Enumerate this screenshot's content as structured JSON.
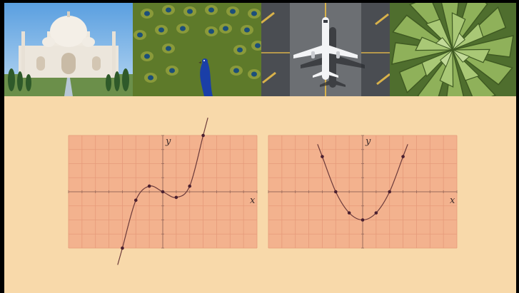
{
  "photos": [
    {
      "subject": "taj-mahal"
    },
    {
      "subject": "peacock"
    },
    {
      "subject": "airplane-on-runway"
    },
    {
      "subject": "spiral-aloe"
    }
  ],
  "colors": {
    "background": "#f8d9aa",
    "graph_fill": "#f3b28e",
    "grid": "#e69a7a",
    "curve": "#6b3a3a",
    "point": "#4a2030"
  },
  "chart_data": [
    {
      "type": "line",
      "xlabel": "x",
      "ylabel": "y",
      "xlim": [
        -7,
        7
      ],
      "ylim": [
        -4,
        4
      ],
      "grid": true,
      "x": [
        -3,
        -2,
        -1,
        0,
        1,
        2,
        3
      ],
      "y": [
        -4,
        -0.6,
        0.4,
        0,
        -0.4,
        0.4,
        4
      ]
    },
    {
      "type": "line",
      "xlabel": "x",
      "ylabel": "y",
      "xlim": [
        -7,
        7
      ],
      "ylim": [
        -4,
        4
      ],
      "grid": true,
      "x": [
        -3,
        -2,
        -1,
        0,
        1,
        2,
        3
      ],
      "y": [
        2.5,
        0,
        -1.5,
        -2,
        -1.5,
        0,
        2.5
      ]
    }
  ]
}
